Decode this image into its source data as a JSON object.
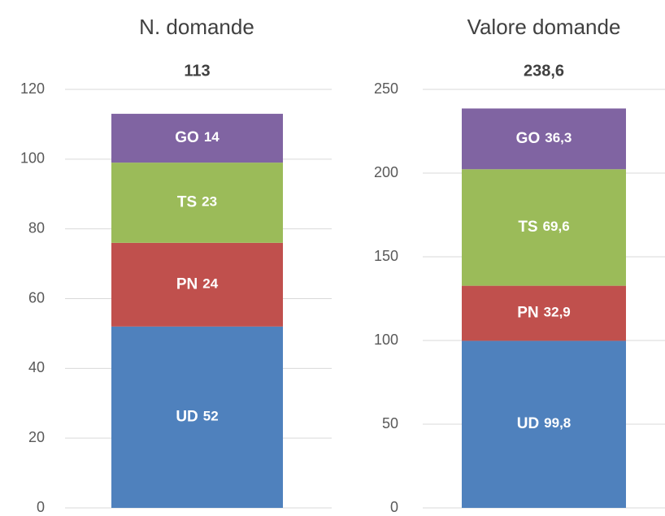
{
  "chart_data": [
    {
      "type": "stacked-bar",
      "title": "N. domande",
      "categories": [
        null
      ],
      "series": [
        {
          "name": "UD",
          "color": "#4f81bd",
          "values": [
            52
          ]
        },
        {
          "name": "PN",
          "color": "#c0504d",
          "values": [
            24
          ]
        },
        {
          "name": "TS",
          "color": "#9bbb59",
          "values": [
            23
          ]
        },
        {
          "name": "GO",
          "color": "#8064a2",
          "values": [
            14
          ]
        }
      ],
      "total": 113,
      "ylim": [
        0,
        120
      ],
      "yticks": [
        0,
        20,
        40,
        60,
        80,
        100,
        120
      ],
      "grid": true
    },
    {
      "type": "stacked-bar",
      "title": "Valore domande",
      "categories": [
        null
      ],
      "series": [
        {
          "name": "UD",
          "color": "#4f81bd",
          "values": [
            99.8
          ],
          "value_labels": [
            "99,8"
          ]
        },
        {
          "name": "PN",
          "color": "#c0504d",
          "values": [
            32.9
          ],
          "value_labels": [
            "32,9"
          ]
        },
        {
          "name": "TS",
          "color": "#9bbb59",
          "values": [
            69.6
          ],
          "value_labels": [
            "69,6"
          ]
        },
        {
          "name": "GO",
          "color": "#8064a2",
          "values": [
            36.3
          ],
          "value_labels": [
            "36,3"
          ]
        }
      ],
      "total": 238.6,
      "total_label": "238,6",
      "ylim": [
        0,
        250
      ],
      "yticks": [
        0,
        50,
        100,
        150,
        200,
        250
      ],
      "grid": true
    }
  ]
}
